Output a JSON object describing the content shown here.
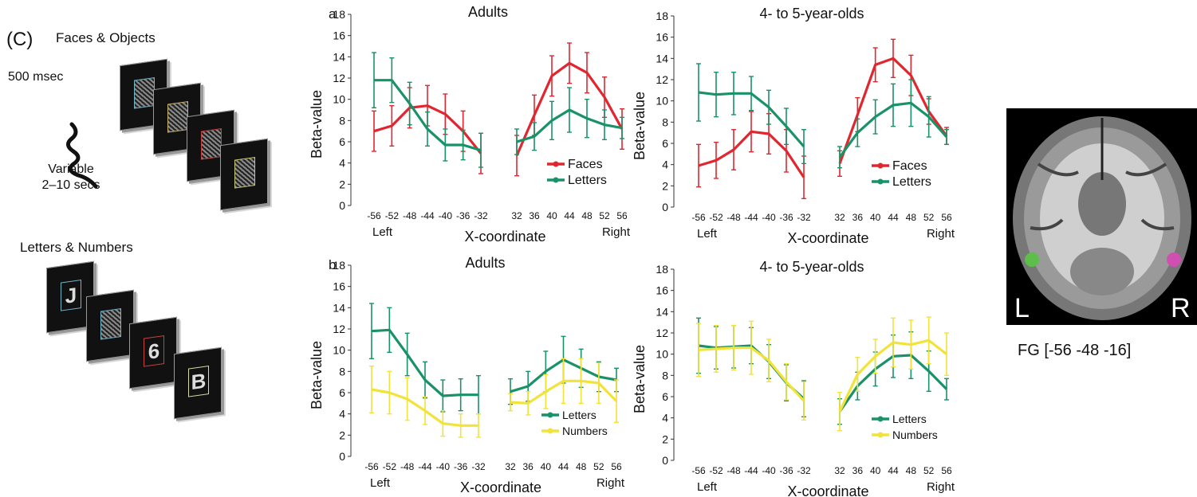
{
  "stimuli": {
    "panel_label": "(C)",
    "faces_objects_title": "Faces & Objects",
    "duration_label": "500 msec",
    "variable_label": "Variable",
    "variable_range": "2–10 secs",
    "letters_numbers_title": "Letters & Numbers",
    "screen_glyphs": [
      "",
      "",
      "",
      "",
      "J",
      "",
      "6",
      "B"
    ]
  },
  "brain": {
    "left_label": "L",
    "right_label": "R",
    "caption": "FG [-56 -48 -16]",
    "marker_colors": {
      "left": "#5bbf4a",
      "right": "#d24fb2"
    }
  },
  "colors": {
    "faces": "#e0262f",
    "letters": "#199268",
    "numbers": "#f2e33a"
  },
  "chart_data": [
    {
      "panel": "a",
      "type": "line",
      "title": "Adults",
      "xlabel": "X-coordinate",
      "ylabel": "Beta-value",
      "x_side_labels": [
        "Left",
        "Right"
      ],
      "ylim": [
        0,
        18
      ],
      "yticks": [
        0,
        2,
        4,
        6,
        8,
        10,
        12,
        14,
        16,
        18
      ],
      "x_left": [
        -56,
        -52,
        -48,
        -44,
        -40,
        -36,
        -32
      ],
      "x_right": [
        32,
        36,
        40,
        44,
        48,
        52,
        56
      ],
      "legend_position": "bottom-right",
      "series": [
        {
          "name": "Faces",
          "color": "#e0262f",
          "left": [
            7.0,
            7.5,
            9.2,
            9.4,
            8.6,
            7.0,
            4.9
          ],
          "right": [
            4.7,
            8.5,
            12.2,
            13.4,
            12.5,
            10.2,
            7.2
          ],
          "left_err": [
            1.9,
            1.9,
            1.9,
            1.9,
            1.9,
            1.9,
            1.9
          ],
          "right_err": [
            1.9,
            1.9,
            1.9,
            1.9,
            1.9,
            1.9,
            1.9
          ]
        },
        {
          "name": "Letters",
          "color": "#199268",
          "left": [
            11.8,
            11.8,
            9.6,
            7.2,
            5.7,
            5.7,
            5.2
          ],
          "right": [
            6.0,
            6.5,
            8.0,
            9.0,
            8.2,
            7.6,
            7.3
          ],
          "left_err": [
            2.6,
            2.1,
            2.0,
            1.6,
            1.5,
            1.4,
            1.6
          ],
          "right_err": [
            1.2,
            1.3,
            1.8,
            2.1,
            1.8,
            1.4,
            1.0
          ]
        }
      ]
    },
    {
      "panel": "",
      "type": "line",
      "title": "4- to 5-year-olds",
      "xlabel": "X-coordinate",
      "ylabel": "Beta-value",
      "x_side_labels": [
        "Left",
        "Right"
      ],
      "ylim": [
        0,
        18
      ],
      "yticks": [
        0,
        2,
        4,
        6,
        8,
        10,
        12,
        14,
        16,
        18
      ],
      "x_left": [
        -56,
        -52,
        -48,
        -44,
        -40,
        -36,
        -32
      ],
      "x_right": [
        32,
        36,
        40,
        44,
        48,
        52,
        56
      ],
      "legend_position": "bottom-right",
      "series": [
        {
          "name": "Faces",
          "color": "#e0262f",
          "left": [
            3.9,
            4.4,
            5.4,
            7.1,
            6.9,
            5.3,
            2.8
          ],
          "right": [
            4.1,
            8.7,
            13.4,
            14.0,
            12.4,
            9.0,
            6.7
          ],
          "left_err": [
            2.0,
            1.7,
            1.9,
            1.9,
            1.9,
            2.0,
            2.0
          ],
          "right_err": [
            1.2,
            1.6,
            1.6,
            1.8,
            1.9,
            1.2,
            0.8
          ]
        },
        {
          "name": "Letters",
          "color": "#199268",
          "left": [
            10.8,
            10.6,
            10.7,
            10.7,
            9.4,
            7.6,
            5.7
          ],
          "right": [
            4.7,
            7.0,
            8.5,
            9.6,
            9.8,
            8.5,
            6.6
          ],
          "left_err": [
            2.7,
            2.1,
            2.0,
            1.6,
            1.6,
            1.7,
            1.6
          ],
          "right_err": [
            1.0,
            1.3,
            1.6,
            2.0,
            2.2,
            1.9,
            0.7
          ]
        }
      ]
    },
    {
      "panel": "b",
      "type": "line",
      "title": "Adults",
      "xlabel": "X-coordinate",
      "ylabel": "Beta-value",
      "x_side_labels": [
        "Left",
        "Right"
      ],
      "ylim": [
        0,
        18
      ],
      "yticks": [
        0,
        2,
        4,
        6,
        8,
        10,
        12,
        14,
        16,
        18
      ],
      "x_left": [
        -56,
        -52,
        -48,
        -44,
        -40,
        -36,
        -32
      ],
      "x_right": [
        32,
        36,
        40,
        44,
        48,
        52,
        56
      ],
      "legend_position": "bottom-right",
      "series": [
        {
          "name": "Letters",
          "color": "#199268",
          "left": [
            11.8,
            11.9,
            9.6,
            7.2,
            5.7,
            5.8,
            5.8
          ],
          "right": [
            6.1,
            6.6,
            8.0,
            9.1,
            8.3,
            7.5,
            7.2
          ],
          "left_err": [
            2.6,
            2.1,
            2.0,
            1.7,
            1.5,
            1.5,
            1.8
          ],
          "right_err": [
            1.2,
            1.4,
            1.9,
            2.2,
            1.8,
            1.4,
            1.1
          ]
        },
        {
          "name": "Numbers",
          "color": "#f2e33a",
          "left": [
            6.3,
            6.0,
            5.4,
            4.3,
            3.1,
            2.9,
            2.9
          ],
          "right": [
            5.1,
            5.0,
            6.1,
            7.1,
            7.1,
            6.9,
            5.2
          ],
          "left_err": [
            2.2,
            2.0,
            2.0,
            1.3,
            1.2,
            1.1,
            1.1
          ],
          "right_err": [
            0.8,
            1.1,
            1.6,
            2.1,
            2.1,
            1.9,
            2.0
          ]
        }
      ]
    },
    {
      "panel": "",
      "type": "line",
      "title": "4- to 5-year-olds",
      "xlabel": "X-coordinate",
      "ylabel": "Beta-value",
      "x_side_labels": [
        "Left",
        "Right"
      ],
      "ylim": [
        0,
        18
      ],
      "yticks": [
        0,
        2,
        4,
        6,
        8,
        10,
        12,
        14,
        16,
        18
      ],
      "x_left": [
        -56,
        -52,
        -48,
        -44,
        -40,
        -36,
        -32
      ],
      "x_right": [
        32,
        36,
        40,
        44,
        48,
        52,
        56
      ],
      "legend_position": "bottom-right",
      "series": [
        {
          "name": "Letters",
          "color": "#199268",
          "left": [
            10.8,
            10.6,
            10.7,
            10.8,
            9.3,
            7.3,
            5.8
          ],
          "right": [
            4.6,
            7.0,
            8.6,
            9.8,
            9.9,
            8.4,
            6.7
          ],
          "left_err": [
            2.6,
            2.0,
            2.0,
            1.7,
            1.6,
            1.7,
            1.7
          ],
          "right_err": [
            1.2,
            1.3,
            1.6,
            2.0,
            2.2,
            1.9,
            1.0
          ]
        },
        {
          "name": "Numbers",
          "color": "#f2e33a",
          "left": [
            10.4,
            10.5,
            10.6,
            10.6,
            9.4,
            7.4,
            5.6
          ],
          "right": [
            4.6,
            8.1,
            9.8,
            11.1,
            10.9,
            11.3,
            10.0
          ],
          "left_err": [
            2.5,
            2.2,
            2.1,
            2.5,
            2.0,
            1.7,
            1.8
          ],
          "right_err": [
            1.8,
            1.6,
            1.6,
            2.3,
            2.3,
            2.2,
            2.0
          ]
        }
      ]
    }
  ]
}
